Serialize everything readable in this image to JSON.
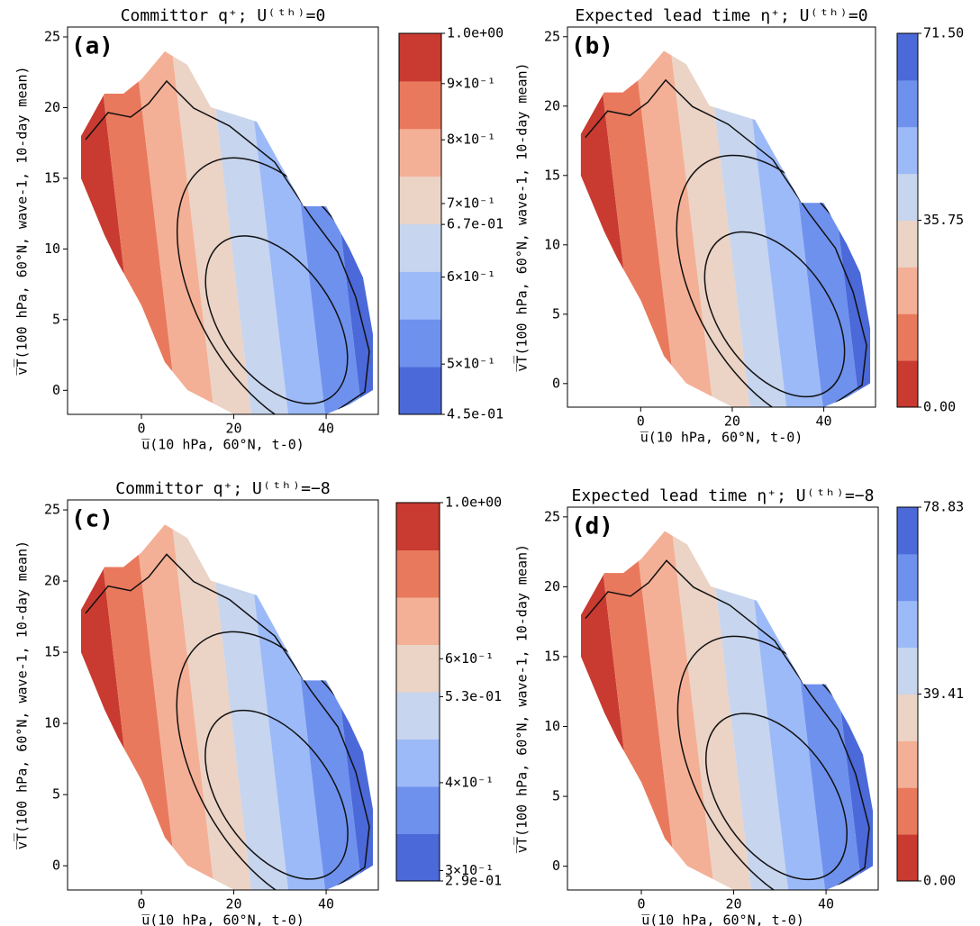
{
  "chart_data": [
    {
      "type": "contour",
      "panel_label": "(a)",
      "title": "Committor q⁺; U⁽ᵗʰ⁾=0",
      "xlabel": "u̅(10 hPa, 60°N, t-0)",
      "ylabel": "v̅T̅(100 hPa, 60°N, wave-1, 10-day mean)",
      "xlim": [
        -16,
        51.3
      ],
      "ylim": [
        -1.7,
        25.7
      ],
      "xticks": [
        0,
        20,
        40
      ],
      "yticks": [
        0,
        5,
        10,
        15,
        20,
        25
      ],
      "colorbar": {
        "scale": "log",
        "lim": [
          0.45,
          1.0
        ],
        "ticks": [
          {
            "value": 1.0,
            "label": "1.0e+00"
          },
          {
            "value": 0.9,
            "label": "9×10⁻¹"
          },
          {
            "value": 0.8,
            "label": "8×10⁻¹"
          },
          {
            "value": 0.7,
            "label": "7×10⁻¹"
          },
          {
            "value": 0.67,
            "label": "6.7e-01"
          },
          {
            "value": 0.6,
            "label": "6×10⁻¹"
          },
          {
            "value": 0.5,
            "label": "5×10⁻¹"
          },
          {
            "value": 0.45,
            "label": "4.5e-01"
          }
        ],
        "colors": [
          "#4b69d8",
          "#6f91ee",
          "#9dbaf8",
          "#c7d5ee",
          "#ebd3c6",
          "#f4b096",
          "#e9795d",
          "#c93a30"
        ]
      }
    },
    {
      "type": "contour",
      "panel_label": "(b)",
      "title": "Expected lead time η⁺; U⁽ᵗʰ⁾=0",
      "xlabel": "u̅(10 hPa, 60°N, t-0)",
      "ylabel": "v̅T̅(100 hPa, 60°N, wave-1, 10-day mean)",
      "xlim": [
        -16,
        51.3
      ],
      "ylim": [
        -1.7,
        25.7
      ],
      "xticks": [
        0,
        20,
        40
      ],
      "yticks": [
        0,
        5,
        10,
        15,
        20,
        25
      ],
      "colorbar": {
        "scale": "linear",
        "lim": [
          0,
          71.5
        ],
        "ticks": [
          {
            "value": 0,
            "label": "0.00"
          },
          35.75,
          {
            "value": 71.5,
            "label": "71.50"
          }
        ],
        "colors": [
          "#c93a30",
          "#e9795d",
          "#f4b096",
          "#ebd3c6",
          "#c7d5ee",
          "#9dbaf8",
          "#6f91ee",
          "#4b69d8"
        ]
      }
    },
    {
      "type": "contour",
      "panel_label": "(c)",
      "title": "Committor q⁺; U⁽ᵗʰ⁾=−8",
      "xlabel": "u̅(10 hPa, 60°N, t-0)",
      "ylabel": "v̅T̅(100 hPa, 60°N, wave-1, 10-day mean)",
      "xlim": [
        -16,
        51.3
      ],
      "ylim": [
        -1.7,
        25.7
      ],
      "xticks": [
        0,
        20,
        40
      ],
      "yticks": [
        0,
        5,
        10,
        15,
        20,
        25
      ],
      "colorbar": {
        "scale": "log",
        "lim": [
          0.29,
          1.0
        ],
        "ticks": [
          {
            "value": 1.0,
            "label": "1.0e+00"
          },
          {
            "value": 0.6,
            "label": "6×10⁻¹"
          },
          {
            "value": 0.53,
            "label": "5.3e-01"
          },
          {
            "value": 0.4,
            "label": "4×10⁻¹"
          },
          {
            "value": 0.3,
            "label": "3×10⁻¹"
          },
          {
            "value": 0.29,
            "label": "2.9e-01"
          }
        ],
        "colors": [
          "#4b69d8",
          "#6f91ee",
          "#9dbaf8",
          "#c7d5ee",
          "#ebd3c6",
          "#f4b096",
          "#e9795d",
          "#c93a30"
        ]
      }
    },
    {
      "type": "contour",
      "panel_label": "(d)",
      "title": "Expected lead time η⁺; U⁽ᵗʰ⁾=−8",
      "xlabel": "u̅(10 hPa, 60°N, t-0)",
      "ylabel": "v̅T̅(100 hPa, 60°N, wave-1, 10-day mean)",
      "xlim": [
        -16,
        51.3
      ],
      "ylim": [
        -1.7,
        25.7
      ],
      "xticks": [
        0,
        20,
        40
      ],
      "yticks": [
        0,
        5,
        10,
        15,
        20,
        25
      ],
      "colorbar": {
        "scale": "linear",
        "lim": [
          0,
          78.83
        ],
        "ticks": [
          {
            "value": 0,
            "label": "0.00"
          },
          39.41,
          78.83
        ],
        "colors": [
          "#c93a30",
          "#e9795d",
          "#f4b096",
          "#ebd3c6",
          "#c7d5ee",
          "#9dbaf8",
          "#6f91ee",
          "#4b69d8"
        ]
      }
    }
  ]
}
